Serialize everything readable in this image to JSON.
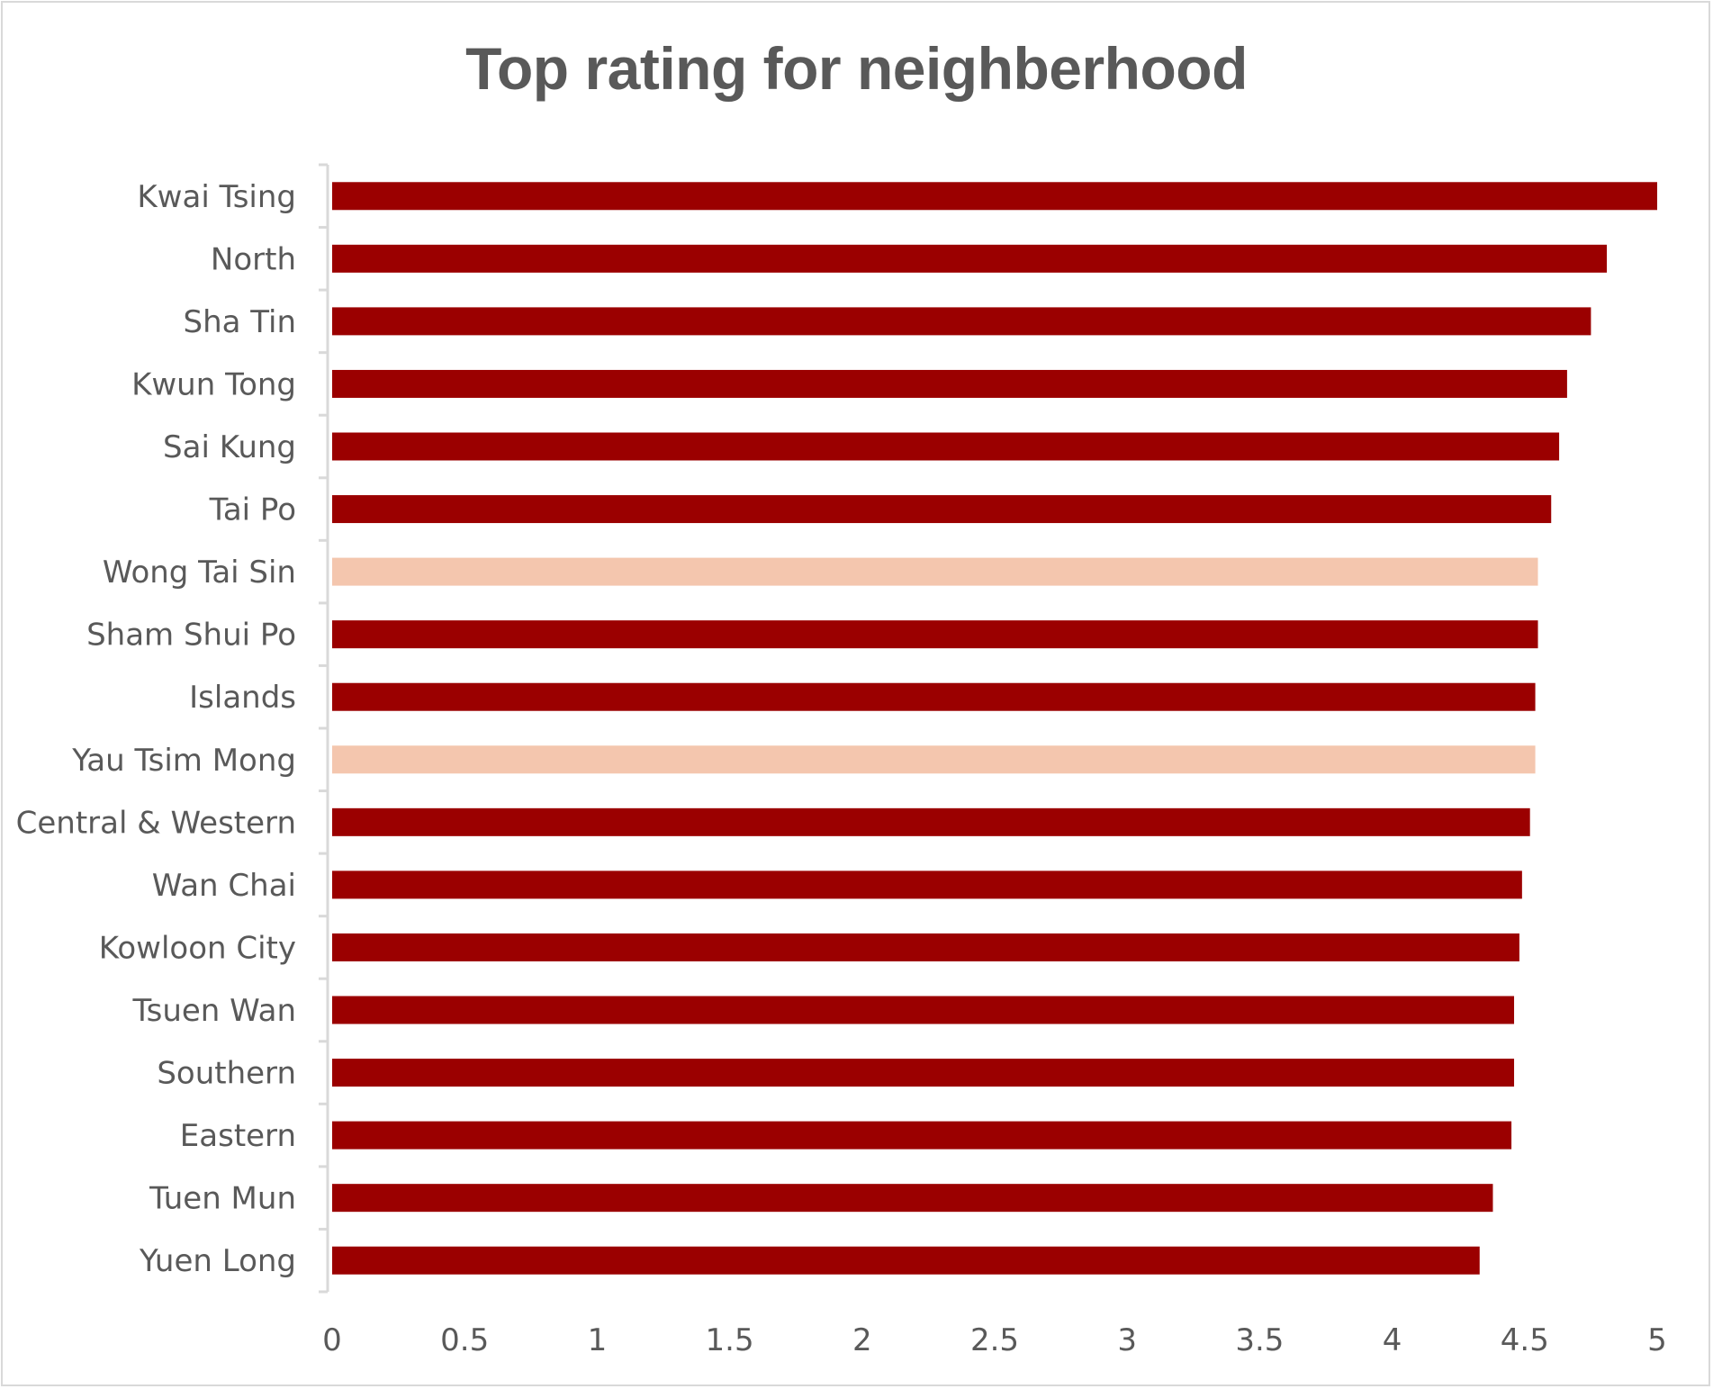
{
  "chart_data": {
    "type": "bar",
    "orientation": "horizontal",
    "title": "Top rating for neighberhood",
    "xlabel": "",
    "ylabel": "",
    "xlim": [
      0,
      5
    ],
    "xticks": [
      "0",
      "0.5",
      "1",
      "1.5",
      "2",
      "2.5",
      "3",
      "3.5",
      "4",
      "4.5",
      "5"
    ],
    "grid": false,
    "legend": "none",
    "categories": [
      "Kwai Tsing",
      "North",
      "Sha Tin",
      "Kwun Tong",
      "Sai Kung",
      "Tai Po",
      "Wong Tai Sin",
      "Sham Shui Po",
      "Islands",
      "Yau Tsim Mong",
      "Central & Western",
      "Wan Chai",
      "Kowloon City",
      "Tsuen Wan",
      "Southern",
      "Eastern",
      "Tuen Mun",
      "Yuen Long"
    ],
    "values": [
      5.0,
      4.81,
      4.75,
      4.66,
      4.63,
      4.6,
      4.55,
      4.55,
      4.54,
      4.54,
      4.52,
      4.49,
      4.48,
      4.46,
      4.46,
      4.45,
      4.38,
      4.33
    ],
    "highlighted": [
      "Wong Tai Sin",
      "Yau Tsim Mong"
    ],
    "colors": {
      "bar": "#9b0000",
      "highlight": "#f4c6ae",
      "axis": "#d9d9d9",
      "text": "#595959",
      "title": "#595959"
    }
  }
}
